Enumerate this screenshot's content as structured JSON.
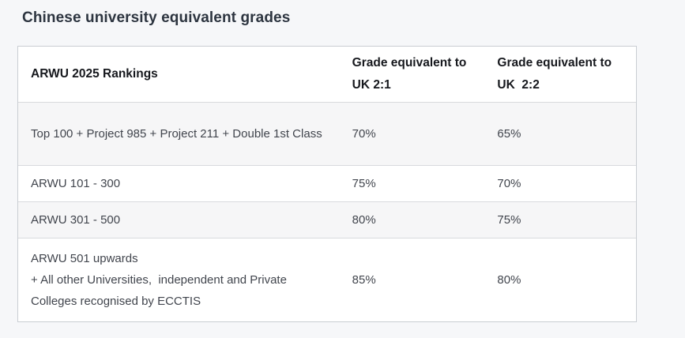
{
  "page": {
    "title": "Chinese university equivalent grades"
  },
  "colors": {
    "page_bg": "#f6f7f9",
    "table_bg": "#ffffff",
    "table_border": "#c9cdd2",
    "row_divider": "#d8dadd",
    "stripe_bg": "#f6f6f7",
    "title_text": "#2d3540",
    "header_text": "#16181d",
    "body_text": "#41454d"
  },
  "table": {
    "columns": [
      {
        "label": "ARWU 2025 Rankings"
      },
      {
        "label": "Grade equivalent to UK 2:1"
      },
      {
        "label": "Grade equivalent to UK  2:2"
      }
    ],
    "rows": [
      {
        "ranking": "Top 100 + Project 985 + Project 211 + Double 1st Class",
        "uk_2_1": "70%",
        "uk_2_2": "65%"
      },
      {
        "ranking": "ARWU 101 - 300",
        "uk_2_1": "75%",
        "uk_2_2": "70%"
      },
      {
        "ranking": "ARWU 301 - 500",
        "uk_2_1": "80%",
        "uk_2_2": "75%"
      },
      {
        "ranking": "ARWU 501 upwards\n+ All other Universities,  independent and Private Colleges recognised by ECCTIS",
        "uk_2_1": "85%",
        "uk_2_2": "80%"
      }
    ]
  }
}
